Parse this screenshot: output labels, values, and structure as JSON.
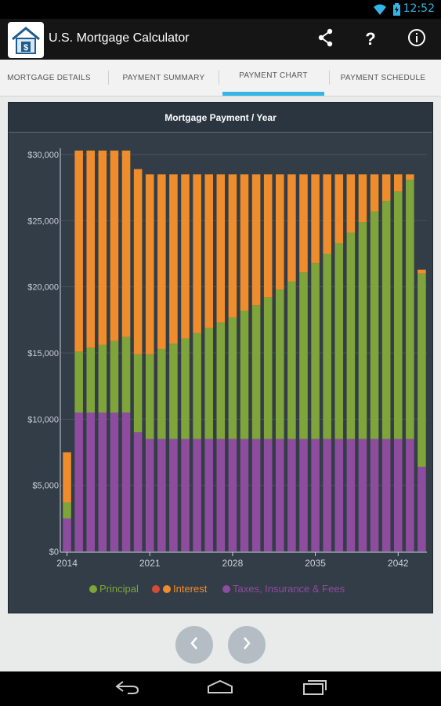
{
  "status": {
    "time": "12:52"
  },
  "app": {
    "title": "U.S. Mortgage Calculator"
  },
  "tabs": [
    {
      "label": "MORTGAGE DETAILS",
      "active": false
    },
    {
      "label": "PAYMENT SUMMARY",
      "active": false
    },
    {
      "label": "PAYMENT CHART",
      "active": true
    },
    {
      "label": "PAYMENT SCHEDULE",
      "active": false
    }
  ],
  "colors": {
    "principal": "#7fa43a",
    "interest": "#ef8c2c",
    "taxes": "#8e4c9e",
    "interest_legend_dot": "#d84a36",
    "accent": "#33b5e5"
  },
  "icons": [
    "share-icon",
    "help-icon",
    "info-icon",
    "chevron-left-icon",
    "chevron-right-icon",
    "back-icon",
    "home-icon",
    "recents-icon",
    "wifi-icon",
    "battery-icon"
  ],
  "chart_data": {
    "type": "bar",
    "stacked": true,
    "title": "Mortgage Payment / Year",
    "ylim": [
      0,
      30000
    ],
    "yticks": [
      "$0",
      "$5,000",
      "$10,000",
      "$15,000",
      "$20,000",
      "$25,000",
      "$30,000"
    ],
    "xticks": [
      "2014",
      "2021",
      "2028",
      "2035",
      "2042"
    ],
    "categories": [
      2014,
      2015,
      2016,
      2017,
      2018,
      2019,
      2020,
      2021,
      2022,
      2023,
      2024,
      2025,
      2026,
      2027,
      2028,
      2029,
      2030,
      2031,
      2032,
      2033,
      2034,
      2035,
      2036,
      2037,
      2038,
      2039,
      2040,
      2041,
      2042,
      2043,
      2044
    ],
    "series": [
      {
        "name": "Taxes, Insurance & Fees",
        "values": [
          2500,
          10500,
          10500,
          10500,
          10500,
          10500,
          9000,
          8500,
          8500,
          8500,
          8500,
          8500,
          8500,
          8500,
          8500,
          8500,
          8500,
          8500,
          8500,
          8500,
          8500,
          8500,
          8500,
          8500,
          8500,
          8500,
          8500,
          8500,
          8500,
          8500,
          6400
        ]
      },
      {
        "name": "Principal",
        "values": [
          1200,
          4600,
          4900,
          5100,
          5400,
          5700,
          5900,
          6400,
          6800,
          7200,
          7600,
          8000,
          8400,
          8800,
          9200,
          9700,
          10100,
          10700,
          11300,
          11900,
          12600,
          13300,
          14000,
          14800,
          15600,
          16400,
          17200,
          18000,
          18700,
          19600,
          14600
        ]
      },
      {
        "name": "Interest",
        "values": [
          3800,
          15200,
          14900,
          14700,
          14400,
          14100,
          14000,
          13600,
          13200,
          12800,
          12400,
          12000,
          11600,
          11200,
          10800,
          10300,
          9900,
          9300,
          8700,
          8100,
          7400,
          6700,
          6000,
          5200,
          4400,
          3600,
          2800,
          2000,
          1300,
          400,
          300
        ]
      }
    ],
    "legend": [
      {
        "name": "Principal"
      },
      {
        "name": "Interest"
      },
      {
        "name": "Taxes, Insurance & Fees"
      }
    ]
  }
}
